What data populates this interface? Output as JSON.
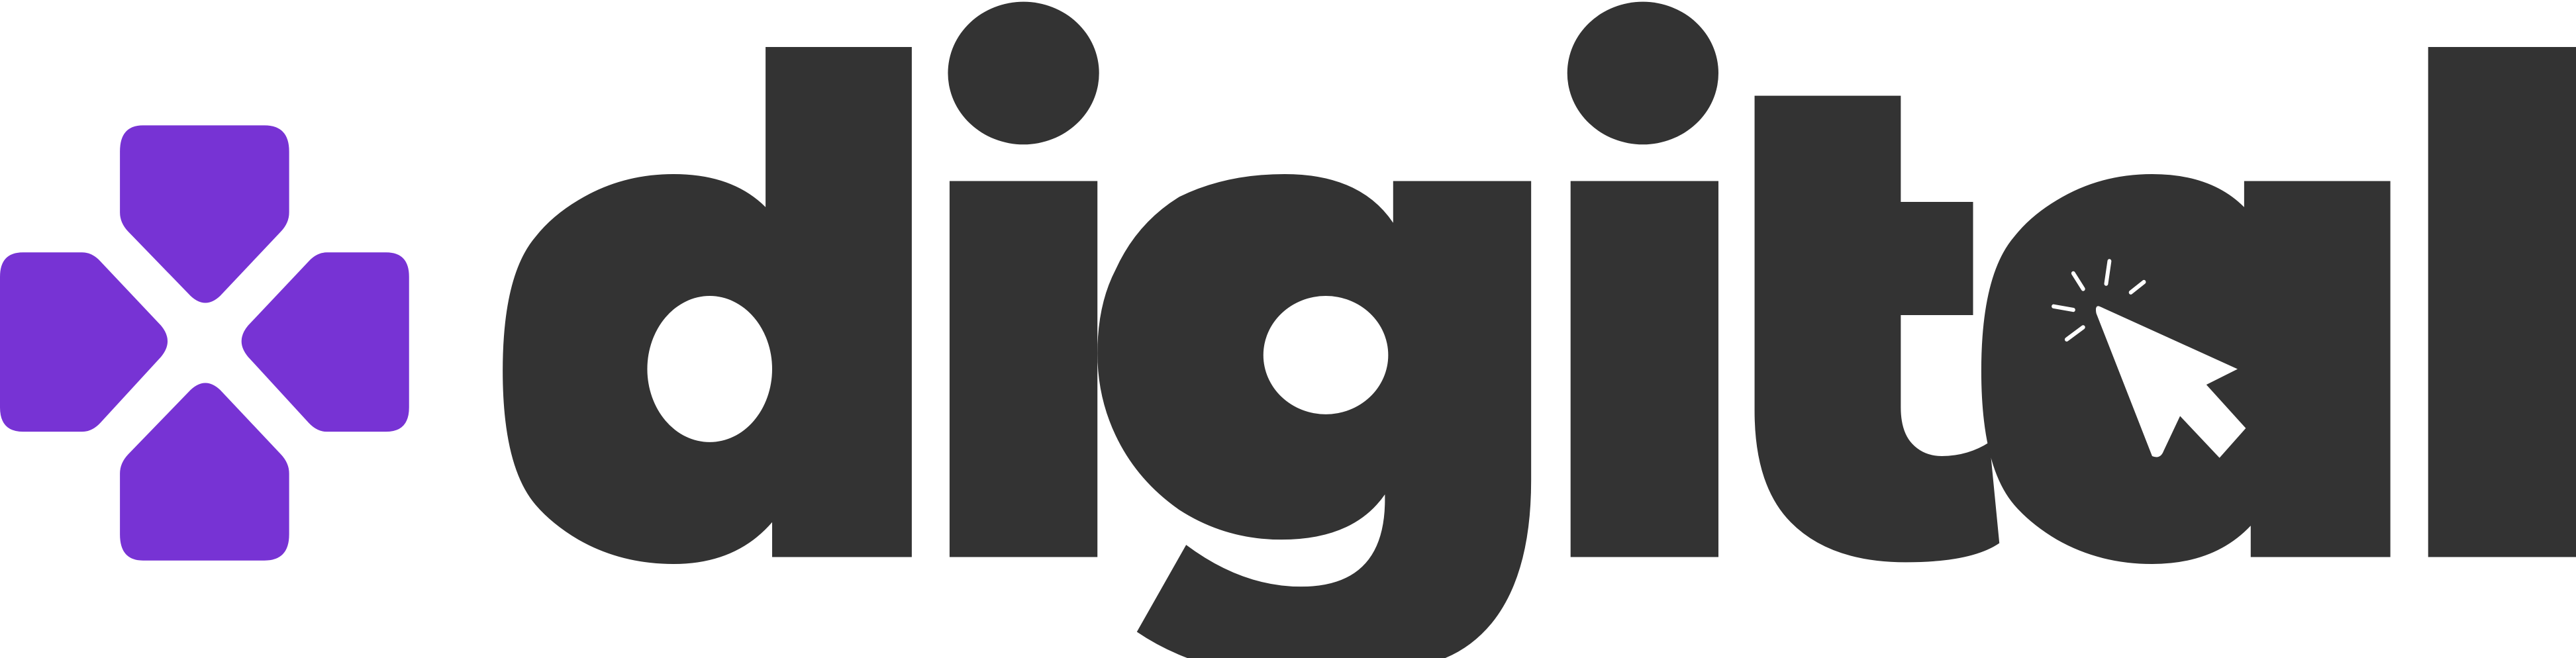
{
  "brand": {
    "wordmark": "digital",
    "colors": {
      "primary": "#7733d4",
      "text": "#333333",
      "background": "#ffffff",
      "cursor": "#ffffff"
    },
    "icons": {
      "mark": "dpad-icon",
      "cursor": "cursor-click-icon"
    }
  }
}
